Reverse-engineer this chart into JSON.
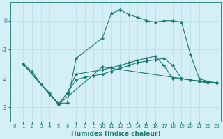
{
  "xlabel": "Humidex (Indice chaleur)",
  "ylabel": "",
  "bg_color": "#d4eff5",
  "grid_color": "#b8dde5",
  "line_color": "#1a7a6e",
  "xlim": [
    -0.5,
    23.5
  ],
  "ylim": [
    -3.5,
    0.65
  ],
  "yticks": [
    -3,
    -2,
    -1,
    0
  ],
  "xticks": [
    0,
    1,
    2,
    3,
    4,
    5,
    6,
    7,
    8,
    9,
    10,
    11,
    12,
    13,
    14,
    15,
    16,
    17,
    18,
    19,
    20,
    21,
    22,
    23
  ],
  "series0_x": [
    1,
    2,
    3,
    4,
    5,
    6,
    7,
    10,
    11,
    12,
    13,
    14,
    15,
    16,
    17,
    18,
    19,
    20,
    21,
    22,
    23
  ],
  "series0_y": [
    -1.5,
    -1.75,
    -2.2,
    -2.55,
    -2.85,
    -2.85,
    -1.3,
    -0.6,
    0.25,
    0.38,
    0.22,
    0.12,
    0.0,
    -0.05,
    0.0,
    0.0,
    -0.05,
    -1.15,
    -2.0,
    -2.1,
    -2.15
  ],
  "series1_x": [
    1,
    3,
    4,
    5,
    6,
    7,
    8,
    9,
    10,
    11,
    12,
    13,
    14,
    15,
    16,
    17,
    18,
    19,
    20,
    21,
    22,
    23
  ],
  "series1_y": [
    -1.5,
    -2.2,
    -2.5,
    -2.9,
    -2.5,
    -2.05,
    -1.95,
    -1.9,
    -1.85,
    -1.75,
    -1.65,
    -1.55,
    -1.45,
    -1.4,
    -1.35,
    -1.3,
    -1.55,
    -2.0,
    -2.05,
    -2.1,
    -2.15,
    -2.15
  ],
  "series2_x": [
    1,
    3,
    5,
    6,
    7,
    10,
    11,
    12,
    13,
    14,
    15,
    16,
    17,
    18,
    19,
    20,
    21,
    22,
    23
  ],
  "series2_y": [
    -1.5,
    -2.2,
    -2.9,
    -2.5,
    -1.85,
    -1.7,
    -1.62,
    -1.55,
    -1.46,
    -1.37,
    -1.3,
    -1.23,
    -1.55,
    -2.0,
    -2.0,
    -2.05,
    -2.1,
    -2.12,
    -2.15
  ],
  "series3_x": [
    1,
    3,
    5,
    10,
    19,
    20,
    21,
    22,
    23
  ],
  "series3_y": [
    -1.5,
    -2.2,
    -2.9,
    -1.6,
    -2.0,
    -2.05,
    -2.08,
    -2.12,
    -2.15
  ]
}
